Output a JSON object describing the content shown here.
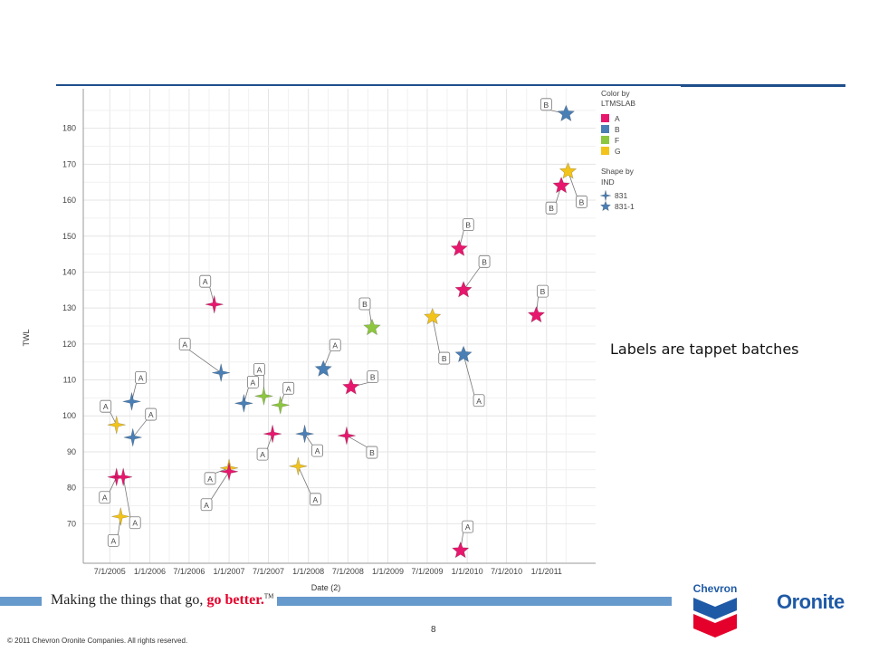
{
  "chart_data": {
    "type": "scatter",
    "xlabel": "Date (2)",
    "ylabel": "TWL",
    "xlim": [
      "2005-03-01",
      "2011-08-15"
    ],
    "ylim": [
      59,
      191
    ],
    "x_ticks": [
      "7/1/2005",
      "1/1/2006",
      "7/1/2006",
      "1/1/2007",
      "7/1/2007",
      "1/1/2008",
      "7/1/2008",
      "1/1/2009",
      "7/1/2009",
      "1/1/2010",
      "7/1/2010",
      "1/1/2011"
    ],
    "y_ticks": [
      70,
      80,
      90,
      100,
      110,
      120,
      130,
      140,
      150,
      160,
      170,
      180
    ],
    "grid": true,
    "legend_position": "top-right",
    "color_legend": {
      "title_line1": "Color by",
      "title_line2": "LTMSLAB",
      "entries": [
        {
          "label": "A",
          "color": "#e8176e"
        },
        {
          "label": "B",
          "color": "#4a7fb5"
        },
        {
          "label": "F",
          "color": "#8dc63f"
        },
        {
          "label": "G",
          "color": "#f2c31b"
        }
      ]
    },
    "shape_legend": {
      "title_line1": "Shape by",
      "title_line2": "IND",
      "entries": [
        {
          "label": "831",
          "shape": "four-point-star"
        },
        {
          "label": "831-1",
          "shape": "five-point-star"
        }
      ]
    },
    "points": [
      {
        "date": "2005-08-01",
        "twl": 83,
        "lab": "A",
        "ind": "831",
        "label": "A"
      },
      {
        "date": "2005-09-01",
        "twl": 83,
        "lab": "A",
        "ind": "831",
        "label": "A"
      },
      {
        "date": "2005-08-01",
        "twl": 97.5,
        "lab": "G",
        "ind": "831",
        "label": "A"
      },
      {
        "date": "2005-08-20",
        "twl": 72,
        "lab": "G",
        "ind": "831",
        "label": "A"
      },
      {
        "date": "2005-10-10",
        "twl": 104,
        "lab": "B",
        "ind": "831",
        "label": "A"
      },
      {
        "date": "2005-10-15",
        "twl": 94,
        "lab": "B",
        "ind": "831",
        "label": "A"
      },
      {
        "date": "2006-10-25",
        "twl": 131,
        "lab": "A",
        "ind": "831",
        "label": "A"
      },
      {
        "date": "2006-11-25",
        "twl": 112,
        "lab": "B",
        "ind": "831",
        "label": "A"
      },
      {
        "date": "2007-01-01",
        "twl": 85.5,
        "lab": "G",
        "ind": "831",
        "label": "A"
      },
      {
        "date": "2007-01-01",
        "twl": 84.5,
        "lab": "A",
        "ind": "831",
        "label": "A"
      },
      {
        "date": "2007-03-10",
        "twl": 103.5,
        "lab": "B",
        "ind": "831",
        "label": "A"
      },
      {
        "date": "2007-06-10",
        "twl": 105.5,
        "lab": "F",
        "ind": "831",
        "label": "A"
      },
      {
        "date": "2007-07-20",
        "twl": 95,
        "lab": "A",
        "ind": "831",
        "label": "A"
      },
      {
        "date": "2007-08-25",
        "twl": 103,
        "lab": "F",
        "ind": "831",
        "label": "A"
      },
      {
        "date": "2007-11-15",
        "twl": 86,
        "lab": "G",
        "ind": "831",
        "label": "A"
      },
      {
        "date": "2007-12-15",
        "twl": 95,
        "lab": "B",
        "ind": "831",
        "label": "A"
      },
      {
        "date": "2008-03-10",
        "twl": 113,
        "lab": "B",
        "ind": "831-1",
        "label": "A"
      },
      {
        "date": "2008-06-25",
        "twl": 94.5,
        "lab": "A",
        "ind": "831",
        "label": "B"
      },
      {
        "date": "2008-07-15",
        "twl": 108,
        "lab": "A",
        "ind": "831-1",
        "label": "B"
      },
      {
        "date": "2008-10-20",
        "twl": 124.5,
        "lab": "F",
        "ind": "831-1",
        "label": "B"
      },
      {
        "date": "2009-07-25",
        "twl": 127.5,
        "lab": "G",
        "ind": "831-1",
        "label": "B"
      },
      {
        "date": "2009-11-25",
        "twl": 146.5,
        "lab": "A",
        "ind": "831-1",
        "label": "B"
      },
      {
        "date": "2009-12-15",
        "twl": 135,
        "lab": "A",
        "ind": "831-1",
        "label": "B"
      },
      {
        "date": "2009-12-15",
        "twl": 117,
        "lab": "B",
        "ind": "831-1",
        "label": "A"
      },
      {
        "date": "2009-12-01",
        "twl": 62.5,
        "lab": "A",
        "ind": "831-1",
        "label": "A"
      },
      {
        "date": "2010-11-15",
        "twl": 128,
        "lab": "A",
        "ind": "831-1",
        "label": "B"
      },
      {
        "date": "2011-03-10",
        "twl": 164,
        "lab": "A",
        "ind": "831-1",
        "label": "B"
      },
      {
        "date": "2011-04-10",
        "twl": 168,
        "lab": "G",
        "ind": "831-1",
        "label": "B"
      },
      {
        "date": "2011-04-01",
        "twl": 184,
        "lab": "B",
        "ind": "831-1",
        "label": "B"
      }
    ]
  },
  "annotation": "Labels are tappet batches",
  "footer": {
    "tagline_main": "Making the things that go, ",
    "tagline_accent": "go better.",
    "tagline_tm": "TM",
    "page_number": "8",
    "copyright": "© 2011 Chevron Oronite Companies. All rights reserved.",
    "logo_chevron": "Chevron",
    "logo_oronite": "Oronite"
  },
  "colors": {
    "header_line": "#1f4e8c",
    "footer_band": "#6699cc",
    "chevron_red": "#e4002b",
    "chevron_blue": "#1f5aa6"
  }
}
